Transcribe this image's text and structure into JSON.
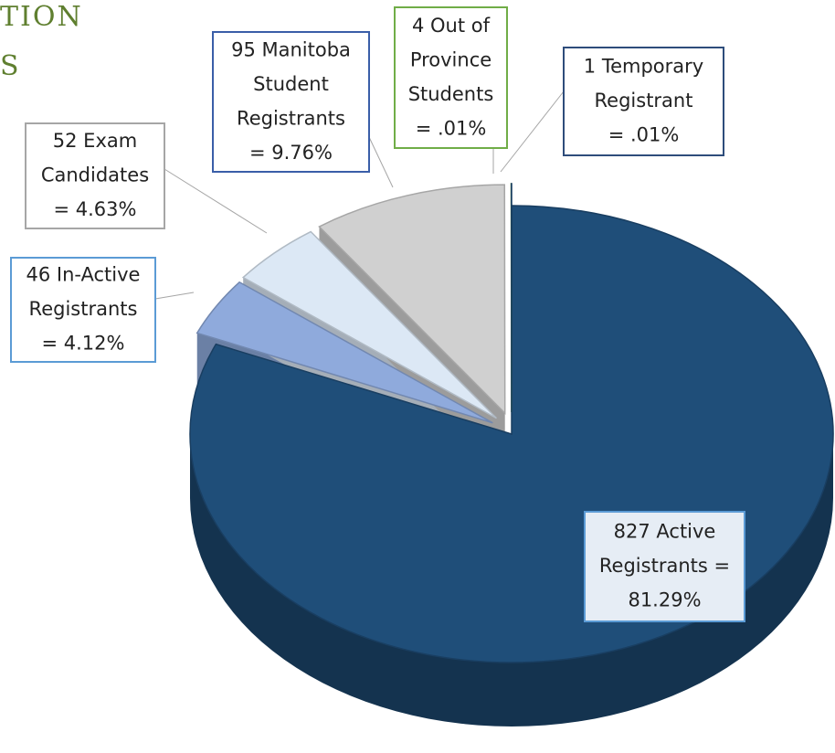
{
  "chart_data": {
    "type": "pie",
    "title_fragments": [
      "TION",
      "S"
    ],
    "labels": [
      [
        "827 Active",
        "Registrants =",
        "81.29%"
      ],
      [
        "46 In-Active",
        "Registrants",
        "= 4.12%"
      ],
      [
        "52 Exam",
        "Candidates",
        "= 4.63%"
      ],
      [
        "95 Manitoba",
        "Student",
        "Registrants",
        "= 9.76%"
      ],
      [
        "4 Out of",
        "Province",
        "Students",
        "= .01%"
      ],
      [
        "1 Temporary",
        "Registrant",
        "= .01%"
      ]
    ],
    "values": [
      81.29,
      4.12,
      4.63,
      9.76,
      0.01,
      0.01
    ],
    "colors": [
      "#1f4e79",
      "#8faadc",
      "#dce8f5",
      "#d0d0d0",
      "#70ad47",
      "#1f4e79"
    ],
    "label_border_colors": [
      "#5b9bd5",
      "#5b9bd5",
      "#a6a6a6",
      "#3a5ea8",
      "#70ad47",
      "#2e4d7b"
    ]
  }
}
